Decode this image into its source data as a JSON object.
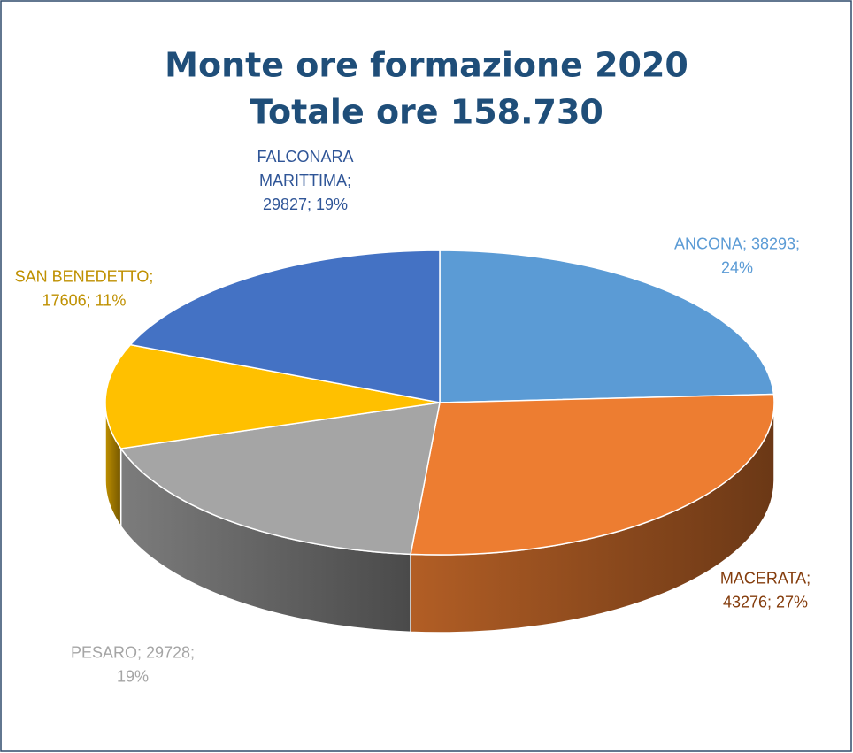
{
  "chart_data": {
    "type": "pie3d",
    "title": "Monte ore formazione 2020",
    "subtitle": "Totale ore 158.730",
    "values": [
      38293,
      43276,
      29728,
      17606,
      29827
    ],
    "value_labels": [
      [
        "ANCONA; 38293;",
        "24%"
      ],
      [
        "MACERATA;",
        "43276; 27%"
      ],
      [
        "PESARO; 29728;",
        "19%"
      ],
      [
        "SAN BENEDETTO;",
        "17606; 11%"
      ],
      [
        "FALCONARA",
        "MARITTIMA;",
        "29827; 19%"
      ]
    ],
    "colors": [
      "#5b9bd5",
      "#ed7d31",
      "#a5a5a5",
      "#ffc000",
      "#4472c4"
    ],
    "label_colors": [
      "#5b9bd5",
      "#843c0c",
      "#a5a5a5",
      "#bf9000",
      "#2f5597"
    ]
  }
}
